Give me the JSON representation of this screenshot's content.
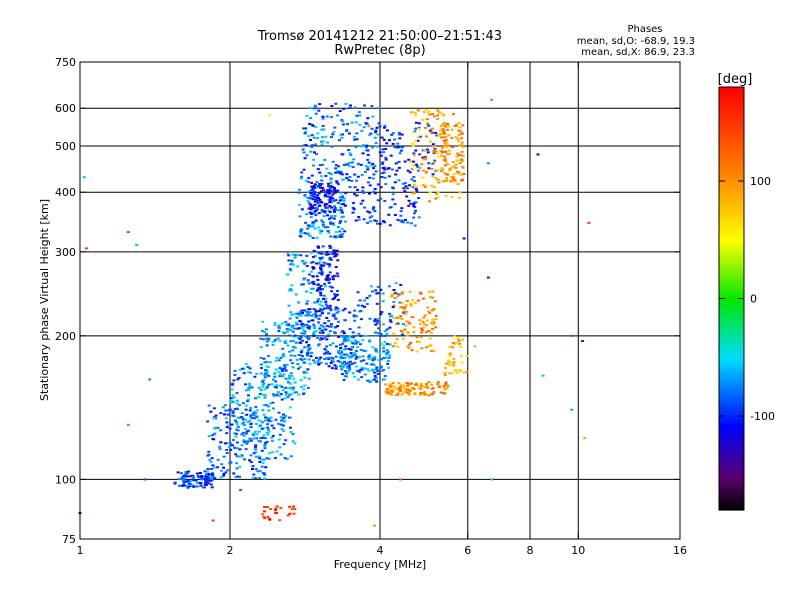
{
  "chart_data": {
    "type": "scatter",
    "title_line1": "Tromsø 20141212 21:50:00–21:51:43",
    "title_line2": "RwPretec (8p)",
    "xlabel": "Frequency [MHz]",
    "ylabel": "Stationary phase Virtual Height [km]",
    "x_scale": "log",
    "y_scale": "log",
    "xlim": [
      1,
      16
    ],
    "ylim": [
      75,
      750
    ],
    "x_ticks": [
      1,
      2,
      4,
      6,
      8,
      10,
      16
    ],
    "x_tick_labels": [
      "1",
      "2",
      "4",
      "6",
      "8",
      "10",
      "16"
    ],
    "x_grid": [
      2,
      4,
      6,
      8,
      10
    ],
    "y_ticks": [
      75,
      100,
      200,
      300,
      400,
      500,
      600,
      750
    ],
    "y_tick_labels": [
      "75",
      "100",
      "200",
      "300",
      "400",
      "500",
      "600",
      "750"
    ],
    "y_grid": [
      100,
      200,
      300,
      400,
      500,
      600
    ],
    "grid": true,
    "colorbar": {
      "label": "[deg]",
      "range": [
        -180,
        180
      ],
      "ticks": [
        100,
        0,
        -100
      ],
      "tick_labels": [
        "100",
        "0",
        "-100"
      ],
      "colormap": "rainbow"
    },
    "legend_title": "Phases",
    "legend_line1": "mean, sd,O: -68.9, 19.3",
    "legend_line2": "mean, sd,X:  86.9, 23.3",
    "clusters": [
      {
        "f": [
          1.55,
          1.85
        ],
        "h": [
          96,
          104
        ],
        "phase": -95,
        "n": 90
      },
      {
        "f": [
          1.8,
          2.4
        ],
        "h": [
          100,
          145
        ],
        "phase": -80,
        "n": 180
      },
      {
        "f": [
          2.0,
          2.7
        ],
        "h": [
          110,
          175
        ],
        "phase": -70,
        "n": 200
      },
      {
        "f": [
          2.3,
          2.9
        ],
        "h": [
          150,
          215
        ],
        "phase": -65,
        "n": 180
      },
      {
        "f": [
          2.6,
          3.2
        ],
        "h": [
          200,
          300
        ],
        "phase": -70,
        "n": 140
      },
      {
        "f": [
          2.9,
          3.3
        ],
        "h": [
          230,
          310
        ],
        "phase": -110,
        "n": 90
      },
      {
        "f": [
          2.75,
          3.6
        ],
        "h": [
          170,
          230
        ],
        "phase": -90,
        "n": 180
      },
      {
        "f": [
          3.3,
          4.2
        ],
        "h": [
          160,
          200
        ],
        "phase": -70,
        "n": 150
      },
      {
        "f": [
          2.75,
          3.4
        ],
        "h": [
          320,
          450
        ],
        "phase": -75,
        "n": 160
      },
      {
        "f": [
          2.9,
          3.3
        ],
        "h": [
          360,
          420
        ],
        "phase": -110,
        "n": 90
      },
      {
        "f": [
          3.3,
          4.8
        ],
        "h": [
          340,
          460
        ],
        "phase": -95,
        "n": 150
      },
      {
        "f": [
          2.8,
          4.0
        ],
        "h": [
          450,
          620
        ],
        "phase": -80,
        "n": 140
      },
      {
        "f": [
          4.0,
          5.2
        ],
        "h": [
          430,
          560
        ],
        "phase": -100,
        "n": 80
      },
      {
        "f": [
          4.6,
          5.8
        ],
        "h": [
          380,
          600
        ],
        "phase": 90,
        "n": 110
      },
      {
        "f": [
          5.3,
          5.9
        ],
        "h": [
          420,
          560
        ],
        "phase": 105,
        "n": 90
      },
      {
        "f": [
          4.2,
          5.2
        ],
        "h": [
          185,
          250
        ],
        "phase": 100,
        "n": 110
      },
      {
        "f": [
          4.1,
          5.5
        ],
        "h": [
          150,
          160
        ],
        "phase": 102,
        "n": 110
      },
      {
        "f": [
          5.4,
          6.0
        ],
        "h": [
          165,
          200
        ],
        "phase": 85,
        "n": 40
      },
      {
        "f": [
          3.6,
          4.5
        ],
        "h": [
          200,
          260
        ],
        "phase": -85,
        "n": 60
      },
      {
        "f": [
          2.3,
          2.7
        ],
        "h": [
          82,
          88
        ],
        "phase": 150,
        "n": 25
      }
    ],
    "outliers": [
      {
        "f": 1.03,
        "h": 305,
        "phase": 150
      },
      {
        "f": 1.02,
        "h": 430,
        "phase": -60
      },
      {
        "f": 1.25,
        "h": 330,
        "phase": 150
      },
      {
        "f": 1.3,
        "h": 310,
        "phase": -60
      },
      {
        "f": 1.38,
        "h": 162,
        "phase": -70
      },
      {
        "f": 1.25,
        "h": 130,
        "phase": 120
      },
      {
        "f": 1.35,
        "h": 100,
        "phase": -90
      },
      {
        "f": 1.0,
        "h": 85,
        "phase": -110
      },
      {
        "f": 1.85,
        "h": 82,
        "phase": 150
      },
      {
        "f": 2.1,
        "h": 95,
        "phase": -80
      },
      {
        "f": 2.4,
        "h": 580,
        "phase": 60
      },
      {
        "f": 3.9,
        "h": 80,
        "phase": 100
      },
      {
        "f": 4.4,
        "h": 100,
        "phase": 140
      },
      {
        "f": 6.6,
        "h": 460,
        "phase": -70
      },
      {
        "f": 6.7,
        "h": 625,
        "phase": 120
      },
      {
        "f": 6.6,
        "h": 265,
        "phase": -100
      },
      {
        "f": 6.7,
        "h": 100,
        "phase": -60
      },
      {
        "f": 8.3,
        "h": 480,
        "phase": -110
      },
      {
        "f": 9.7,
        "h": 200,
        "phase": -80
      },
      {
        "f": 10.2,
        "h": 195,
        "phase": -150
      },
      {
        "f": 9.7,
        "h": 140,
        "phase": -60
      },
      {
        "f": 10.3,
        "h": 122,
        "phase": 20
      },
      {
        "f": 10.5,
        "h": 345,
        "phase": 150
      },
      {
        "f": 8.5,
        "h": 165,
        "phase": -60
      },
      {
        "f": 6.2,
        "h": 190,
        "phase": 90
      },
      {
        "f": 5.9,
        "h": 320,
        "phase": -110
      },
      {
        "f": 3.8,
        "h": 550,
        "phase": 110
      }
    ]
  }
}
